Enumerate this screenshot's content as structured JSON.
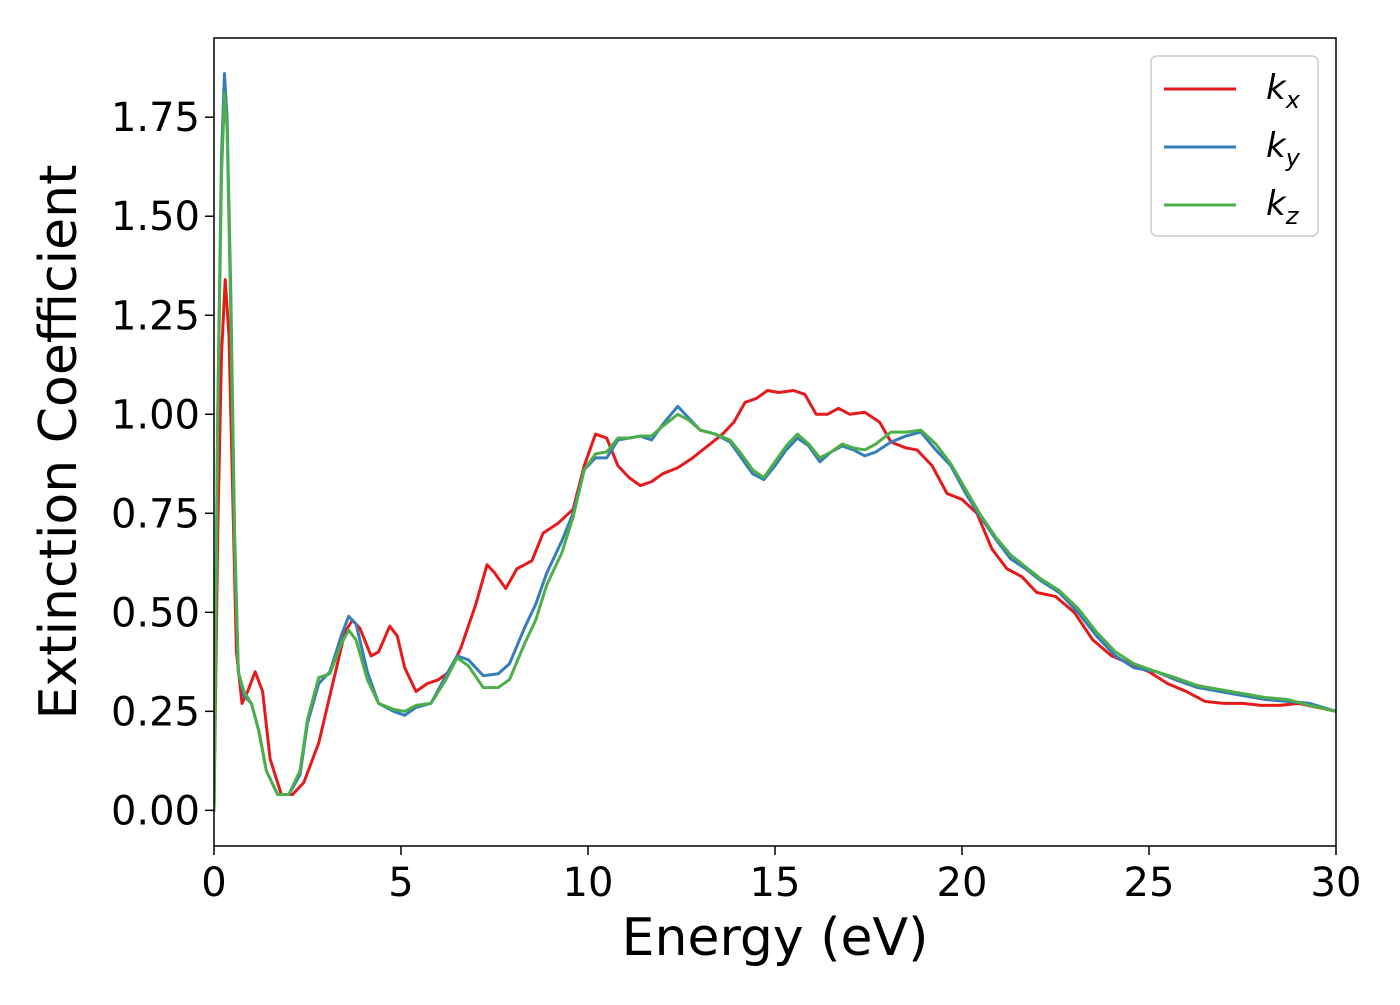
{
  "chart_data": {
    "type": "line",
    "title": "",
    "xlabel": "Energy (eV)",
    "ylabel": "Extinction Coefficient",
    "xlim": [
      0,
      30
    ],
    "ylim": [
      -0.09,
      1.95
    ],
    "xticks": [
      0,
      5,
      10,
      15,
      20,
      25,
      30
    ],
    "xtick_labels": [
      "0",
      "5",
      "10",
      "15",
      "20",
      "25",
      "30"
    ],
    "yticks": [
      0.0,
      0.25,
      0.5,
      0.75,
      1.0,
      1.25,
      1.5,
      1.75
    ],
    "ytick_labels": [
      "0.00",
      "0.25",
      "0.50",
      "0.75",
      "1.00",
      "1.25",
      "1.50",
      "1.75"
    ],
    "grid": false,
    "legend_position": "top-right",
    "series": [
      {
        "name": "k_x",
        "label_base": "k",
        "label_sub": "x",
        "color": "#e41a1c",
        "points": [
          [
            0,
            0
          ],
          [
            0.1,
            0.7
          ],
          [
            0.2,
            1.15
          ],
          [
            0.3,
            1.34
          ],
          [
            0.4,
            1.2
          ],
          [
            0.5,
            0.8
          ],
          [
            0.6,
            0.4
          ],
          [
            0.75,
            0.27
          ],
          [
            0.9,
            0.3
          ],
          [
            1.1,
            0.35
          ],
          [
            1.3,
            0.3
          ],
          [
            1.5,
            0.13
          ],
          [
            1.8,
            0.04
          ],
          [
            2.1,
            0.04
          ],
          [
            2.4,
            0.07
          ],
          [
            2.8,
            0.17
          ],
          [
            3.2,
            0.33
          ],
          [
            3.5,
            0.45
          ],
          [
            3.7,
            0.48
          ],
          [
            3.9,
            0.46
          ],
          [
            4.2,
            0.39
          ],
          [
            4.4,
            0.4
          ],
          [
            4.7,
            0.465
          ],
          [
            4.9,
            0.44
          ],
          [
            5.1,
            0.36
          ],
          [
            5.4,
            0.3
          ],
          [
            5.7,
            0.32
          ],
          [
            6.0,
            0.33
          ],
          [
            6.3,
            0.35
          ],
          [
            6.6,
            0.41
          ],
          [
            7.0,
            0.52
          ],
          [
            7.3,
            0.62
          ],
          [
            7.5,
            0.6
          ],
          [
            7.8,
            0.56
          ],
          [
            8.1,
            0.61
          ],
          [
            8.5,
            0.63
          ],
          [
            8.8,
            0.7
          ],
          [
            9.2,
            0.725
          ],
          [
            9.6,
            0.76
          ],
          [
            9.9,
            0.87
          ],
          [
            10.2,
            0.95
          ],
          [
            10.5,
            0.94
          ],
          [
            10.8,
            0.87
          ],
          [
            11.1,
            0.84
          ],
          [
            11.4,
            0.82
          ],
          [
            11.7,
            0.83
          ],
          [
            12.0,
            0.85
          ],
          [
            12.4,
            0.865
          ],
          [
            12.8,
            0.89
          ],
          [
            13.2,
            0.92
          ],
          [
            13.6,
            0.95
          ],
          [
            13.9,
            0.98
          ],
          [
            14.2,
            1.03
          ],
          [
            14.5,
            1.04
          ],
          [
            14.8,
            1.06
          ],
          [
            15.1,
            1.055
          ],
          [
            15.5,
            1.06
          ],
          [
            15.8,
            1.05
          ],
          [
            16.1,
            1.0
          ],
          [
            16.4,
            1.0
          ],
          [
            16.7,
            1.015
          ],
          [
            17.0,
            1.0
          ],
          [
            17.4,
            1.005
          ],
          [
            17.8,
            0.98
          ],
          [
            18.1,
            0.93
          ],
          [
            18.5,
            0.915
          ],
          [
            18.8,
            0.91
          ],
          [
            19.2,
            0.87
          ],
          [
            19.6,
            0.8
          ],
          [
            20.0,
            0.785
          ],
          [
            20.4,
            0.75
          ],
          [
            20.8,
            0.66
          ],
          [
            21.2,
            0.61
          ],
          [
            21.6,
            0.59
          ],
          [
            22.0,
            0.55
          ],
          [
            22.5,
            0.54
          ],
          [
            23.0,
            0.5
          ],
          [
            23.5,
            0.43
          ],
          [
            24.0,
            0.39
          ],
          [
            24.5,
            0.37
          ],
          [
            25.0,
            0.35
          ],
          [
            25.5,
            0.32
          ],
          [
            26.0,
            0.3
          ],
          [
            26.5,
            0.275
          ],
          [
            27.0,
            0.27
          ],
          [
            27.5,
            0.27
          ],
          [
            28.0,
            0.265
          ],
          [
            28.5,
            0.265
          ],
          [
            29.0,
            0.27
          ],
          [
            29.5,
            0.26
          ],
          [
            30.0,
            0.25
          ]
        ]
      },
      {
        "name": "k_y",
        "label_base": "k",
        "label_sub": "y",
        "color": "#377eb8",
        "points": [
          [
            0,
            0
          ],
          [
            0.1,
            1.0
          ],
          [
            0.2,
            1.65
          ],
          [
            0.28,
            1.86
          ],
          [
            0.35,
            1.75
          ],
          [
            0.45,
            1.3
          ],
          [
            0.55,
            0.7
          ],
          [
            0.65,
            0.35
          ],
          [
            0.8,
            0.29
          ],
          [
            1.0,
            0.27
          ],
          [
            1.2,
            0.2
          ],
          [
            1.4,
            0.1
          ],
          [
            1.7,
            0.04
          ],
          [
            2.0,
            0.04
          ],
          [
            2.3,
            0.09
          ],
          [
            2.5,
            0.22
          ],
          [
            2.8,
            0.32
          ],
          [
            3.1,
            0.35
          ],
          [
            3.4,
            0.44
          ],
          [
            3.6,
            0.49
          ],
          [
            3.8,
            0.47
          ],
          [
            4.1,
            0.35
          ],
          [
            4.4,
            0.27
          ],
          [
            4.8,
            0.25
          ],
          [
            5.1,
            0.24
          ],
          [
            5.4,
            0.26
          ],
          [
            5.8,
            0.27
          ],
          [
            6.2,
            0.34
          ],
          [
            6.5,
            0.39
          ],
          [
            6.8,
            0.38
          ],
          [
            7.2,
            0.34
          ],
          [
            7.6,
            0.345
          ],
          [
            7.9,
            0.37
          ],
          [
            8.3,
            0.46
          ],
          [
            8.6,
            0.52
          ],
          [
            8.9,
            0.6
          ],
          [
            9.3,
            0.68
          ],
          [
            9.6,
            0.75
          ],
          [
            9.9,
            0.86
          ],
          [
            10.2,
            0.89
          ],
          [
            10.5,
            0.89
          ],
          [
            10.8,
            0.935
          ],
          [
            11.1,
            0.94
          ],
          [
            11.4,
            0.945
          ],
          [
            11.7,
            0.935
          ],
          [
            12.0,
            0.975
          ],
          [
            12.4,
            1.02
          ],
          [
            12.7,
            0.99
          ],
          [
            13.0,
            0.96
          ],
          [
            13.4,
            0.95
          ],
          [
            13.8,
            0.93
          ],
          [
            14.1,
            0.89
          ],
          [
            14.4,
            0.85
          ],
          [
            14.7,
            0.835
          ],
          [
            15.0,
            0.87
          ],
          [
            15.3,
            0.91
          ],
          [
            15.6,
            0.94
          ],
          [
            15.9,
            0.92
          ],
          [
            16.2,
            0.88
          ],
          [
            16.5,
            0.905
          ],
          [
            16.8,
            0.92
          ],
          [
            17.1,
            0.91
          ],
          [
            17.4,
            0.895
          ],
          [
            17.7,
            0.905
          ],
          [
            18.1,
            0.93
          ],
          [
            18.5,
            0.945
          ],
          [
            18.9,
            0.955
          ],
          [
            19.3,
            0.91
          ],
          [
            19.7,
            0.87
          ],
          [
            20.1,
            0.8
          ],
          [
            20.5,
            0.74
          ],
          [
            20.9,
            0.685
          ],
          [
            21.3,
            0.635
          ],
          [
            21.7,
            0.61
          ],
          [
            22.1,
            0.58
          ],
          [
            22.6,
            0.55
          ],
          [
            23.1,
            0.5
          ],
          [
            23.6,
            0.44
          ],
          [
            24.1,
            0.39
          ],
          [
            24.6,
            0.36
          ],
          [
            25.2,
            0.35
          ],
          [
            25.7,
            0.33
          ],
          [
            26.3,
            0.31
          ],
          [
            26.9,
            0.3
          ],
          [
            27.5,
            0.29
          ],
          [
            28.1,
            0.28
          ],
          [
            28.7,
            0.275
          ],
          [
            29.3,
            0.27
          ],
          [
            30.0,
            0.25
          ]
        ]
      },
      {
        "name": "k_z",
        "label_base": "k",
        "label_sub": "z",
        "color": "#4daf4a",
        "points": [
          [
            0,
            0
          ],
          [
            0.1,
            1.0
          ],
          [
            0.2,
            1.6
          ],
          [
            0.28,
            1.81
          ],
          [
            0.35,
            1.72
          ],
          [
            0.45,
            1.25
          ],
          [
            0.55,
            0.68
          ],
          [
            0.65,
            0.35
          ],
          [
            0.8,
            0.3
          ],
          [
            1.0,
            0.27
          ],
          [
            1.2,
            0.2
          ],
          [
            1.4,
            0.1
          ],
          [
            1.7,
            0.04
          ],
          [
            2.0,
            0.04
          ],
          [
            2.3,
            0.1
          ],
          [
            2.5,
            0.23
          ],
          [
            2.8,
            0.335
          ],
          [
            3.1,
            0.345
          ],
          [
            3.4,
            0.42
          ],
          [
            3.6,
            0.455
          ],
          [
            3.8,
            0.43
          ],
          [
            4.1,
            0.33
          ],
          [
            4.4,
            0.27
          ],
          [
            4.8,
            0.255
          ],
          [
            5.1,
            0.25
          ],
          [
            5.4,
            0.265
          ],
          [
            5.8,
            0.27
          ],
          [
            6.2,
            0.33
          ],
          [
            6.5,
            0.385
          ],
          [
            6.8,
            0.365
          ],
          [
            7.2,
            0.31
          ],
          [
            7.6,
            0.31
          ],
          [
            7.9,
            0.33
          ],
          [
            8.3,
            0.42
          ],
          [
            8.6,
            0.48
          ],
          [
            8.9,
            0.57
          ],
          [
            9.3,
            0.65
          ],
          [
            9.6,
            0.74
          ],
          [
            9.9,
            0.86
          ],
          [
            10.2,
            0.9
          ],
          [
            10.5,
            0.905
          ],
          [
            10.8,
            0.94
          ],
          [
            11.1,
            0.94
          ],
          [
            11.4,
            0.945
          ],
          [
            11.7,
            0.945
          ],
          [
            12.0,
            0.97
          ],
          [
            12.4,
            1.0
          ],
          [
            12.7,
            0.985
          ],
          [
            13.0,
            0.96
          ],
          [
            13.4,
            0.95
          ],
          [
            13.8,
            0.935
          ],
          [
            14.1,
            0.9
          ],
          [
            14.4,
            0.86
          ],
          [
            14.7,
            0.84
          ],
          [
            15.0,
            0.88
          ],
          [
            15.3,
            0.92
          ],
          [
            15.6,
            0.95
          ],
          [
            15.9,
            0.925
          ],
          [
            16.2,
            0.89
          ],
          [
            16.5,
            0.905
          ],
          [
            16.8,
            0.925
          ],
          [
            17.1,
            0.915
          ],
          [
            17.4,
            0.91
          ],
          [
            17.7,
            0.925
          ],
          [
            18.1,
            0.955
          ],
          [
            18.5,
            0.955
          ],
          [
            18.9,
            0.96
          ],
          [
            19.3,
            0.925
          ],
          [
            19.7,
            0.875
          ],
          [
            20.1,
            0.81
          ],
          [
            20.5,
            0.745
          ],
          [
            20.9,
            0.69
          ],
          [
            21.3,
            0.645
          ],
          [
            21.7,
            0.615
          ],
          [
            22.1,
            0.585
          ],
          [
            22.6,
            0.555
          ],
          [
            23.1,
            0.51
          ],
          [
            23.6,
            0.45
          ],
          [
            24.1,
            0.4
          ],
          [
            24.6,
            0.37
          ],
          [
            25.2,
            0.35
          ],
          [
            25.7,
            0.335
          ],
          [
            26.3,
            0.315
          ],
          [
            26.9,
            0.305
          ],
          [
            27.5,
            0.295
          ],
          [
            28.1,
            0.285
          ],
          [
            28.7,
            0.28
          ],
          [
            29.3,
            0.265
          ],
          [
            30.0,
            0.25
          ]
        ]
      }
    ]
  }
}
